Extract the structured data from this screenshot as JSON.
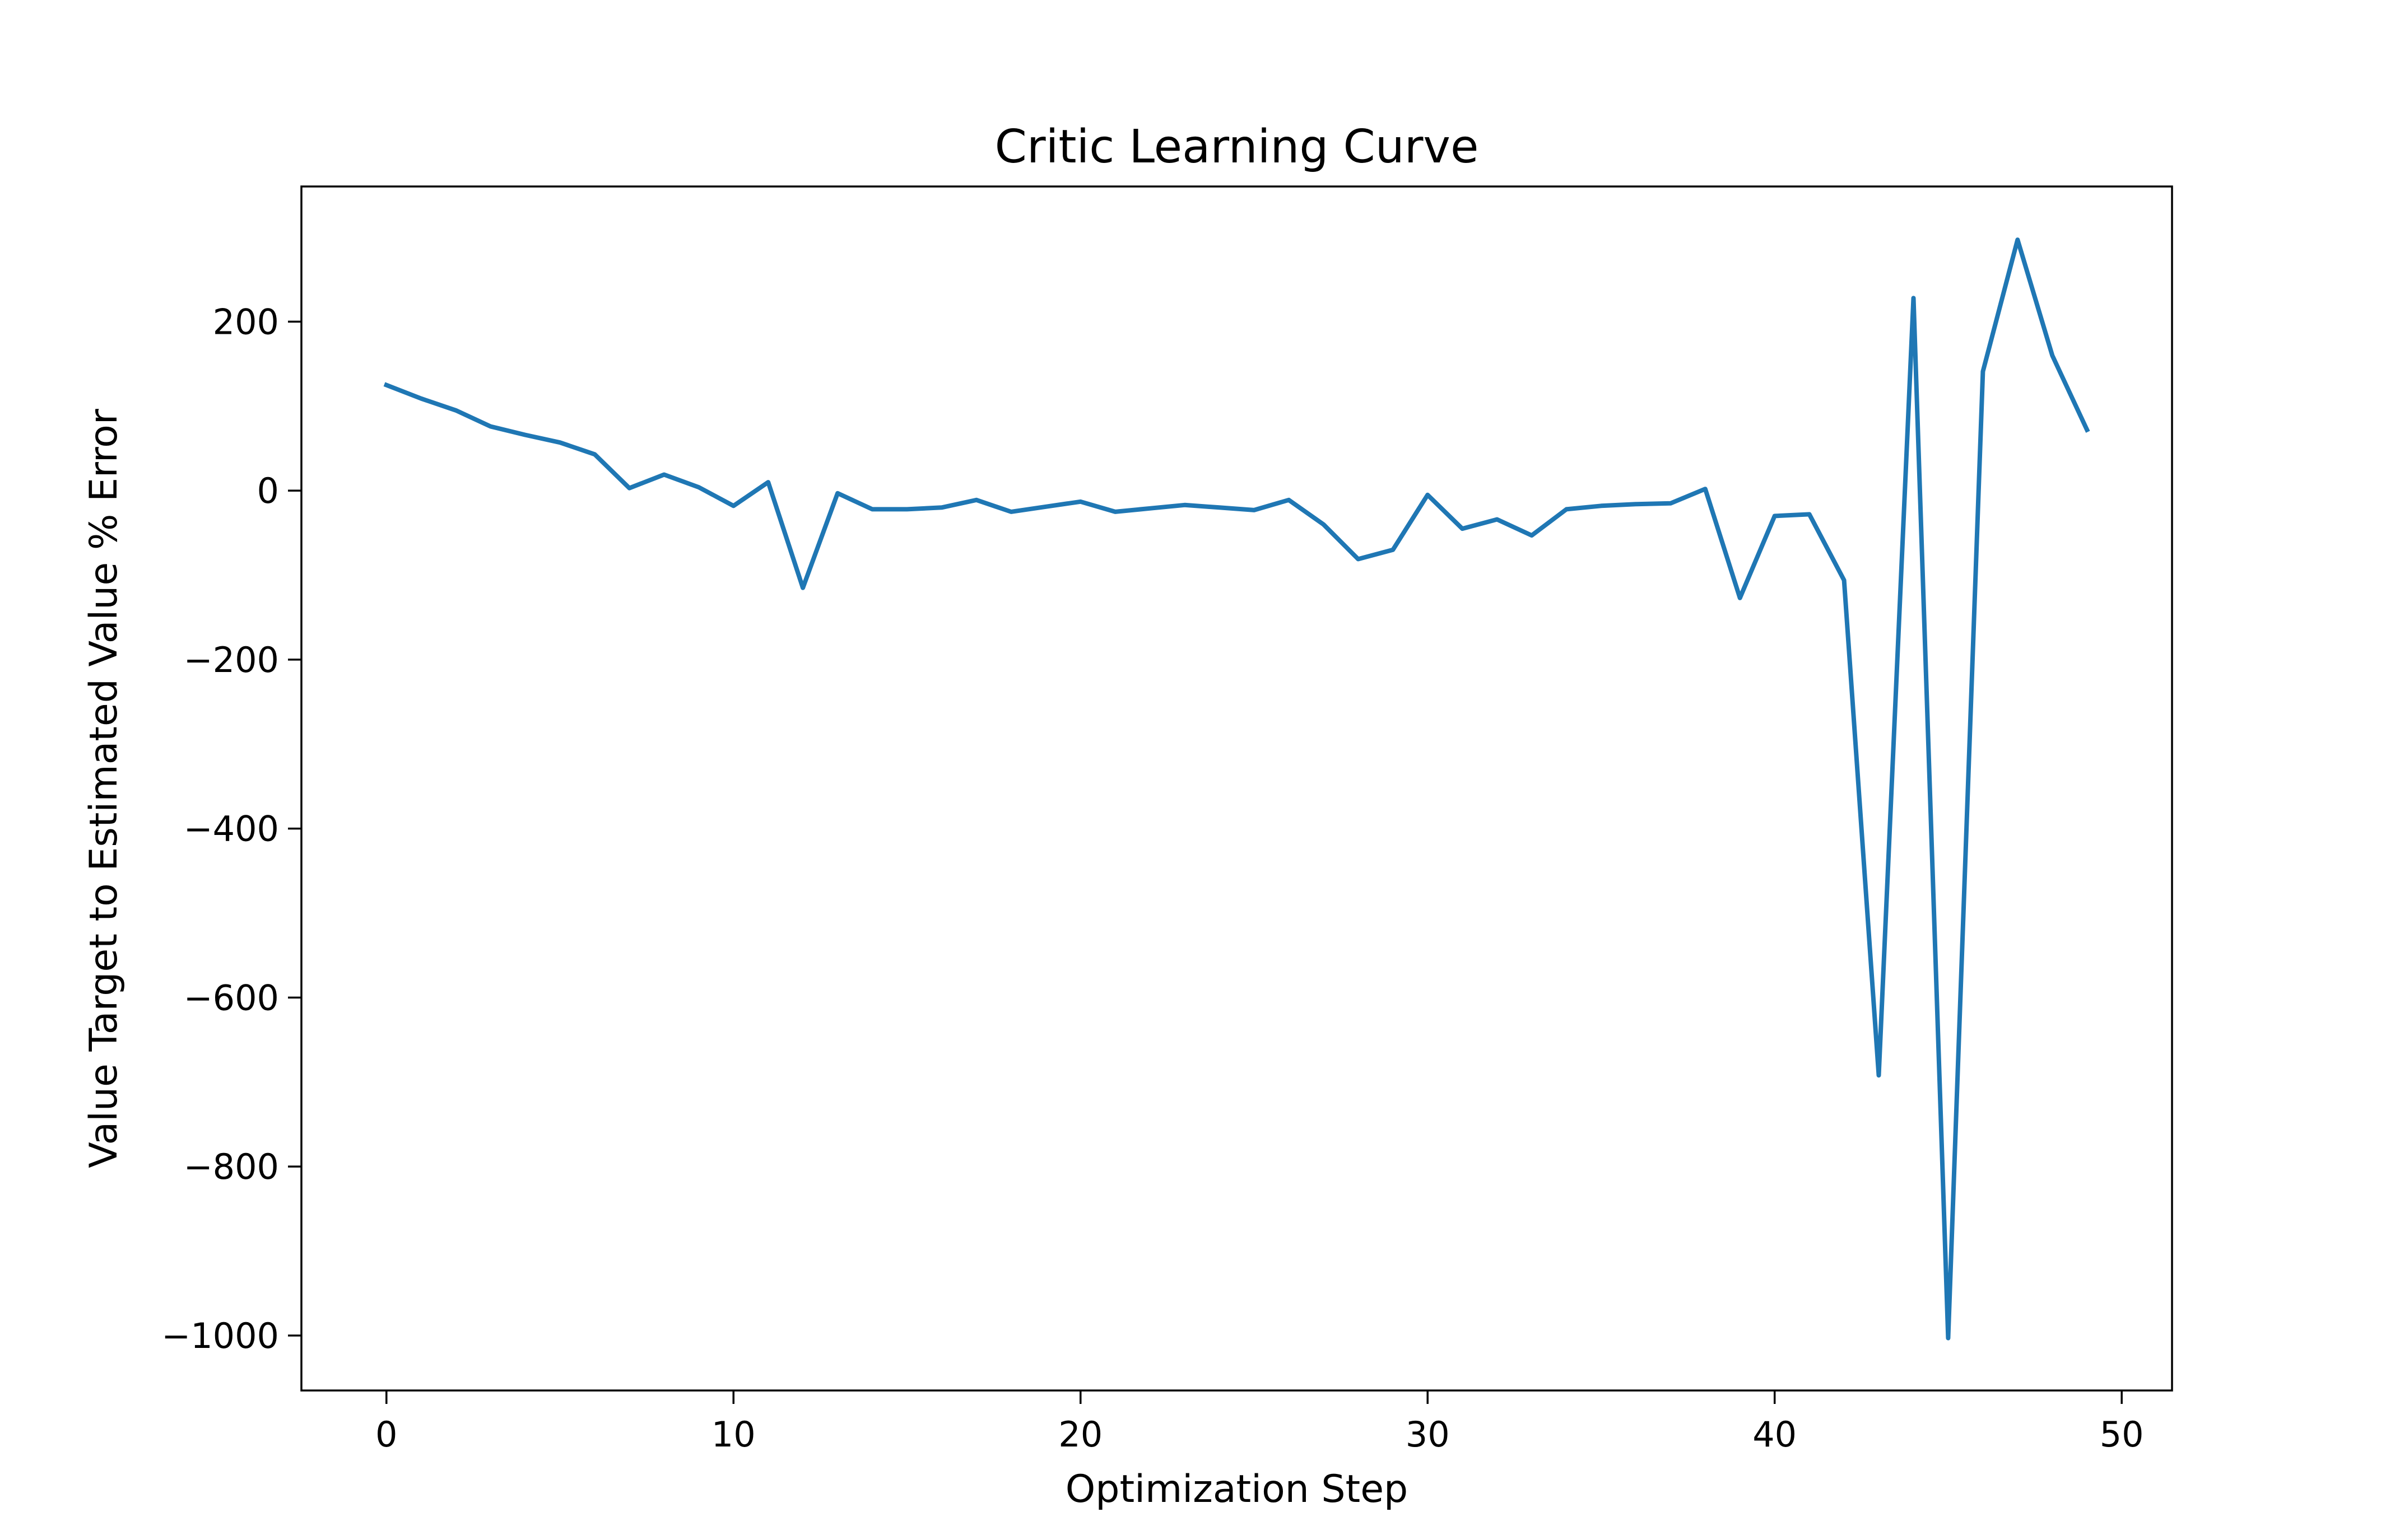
{
  "chart_data": {
    "type": "line",
    "title": "Critic Learning Curve",
    "xlabel": "Optimization Step",
    "ylabel": "Value Target to Estimated Value % Error",
    "xlim": [
      -2.45,
      51.45
    ],
    "ylim": [
      -1065,
      360
    ],
    "xticks": [
      0,
      10,
      20,
      30,
      40,
      50
    ],
    "xtick_labels": [
      "0",
      "10",
      "20",
      "30",
      "40",
      "50"
    ],
    "yticks": [
      200,
      0,
      -200,
      -400,
      -600,
      -800,
      -1000
    ],
    "ytick_labels": [
      "200",
      "0",
      "−200",
      "−400",
      "−600",
      "−800",
      "−1000"
    ],
    "grid": false,
    "legend": "none",
    "series": [
      {
        "color": "#1f77b4",
        "x": [
          0,
          1,
          2,
          3,
          4,
          5,
          6,
          7,
          8,
          9,
          10,
          11,
          12,
          13,
          14,
          15,
          16,
          17,
          18,
          19,
          20,
          21,
          22,
          23,
          24,
          25,
          26,
          27,
          28,
          29,
          30,
          31,
          32,
          33,
          34,
          35,
          36,
          37,
          38,
          39,
          40,
          41,
          42,
          43,
          44,
          45,
          46,
          47,
          48,
          49
        ],
        "values": [
          125,
          109,
          95,
          76,
          66,
          57,
          43,
          3,
          19,
          4,
          -18,
          10,
          -115,
          -3,
          -22,
          -22,
          -20,
          -11,
          -25,
          -19,
          -13,
          -25,
          -21,
          -17,
          -20,
          -23,
          -11,
          -40,
          -81,
          -70,
          -5,
          -45,
          -34,
          -53,
          -22,
          -18,
          -16,
          -15,
          2,
          -127,
          -30,
          -28,
          -106,
          -692,
          228,
          -1003,
          141,
          297,
          160,
          72
        ]
      }
    ]
  }
}
